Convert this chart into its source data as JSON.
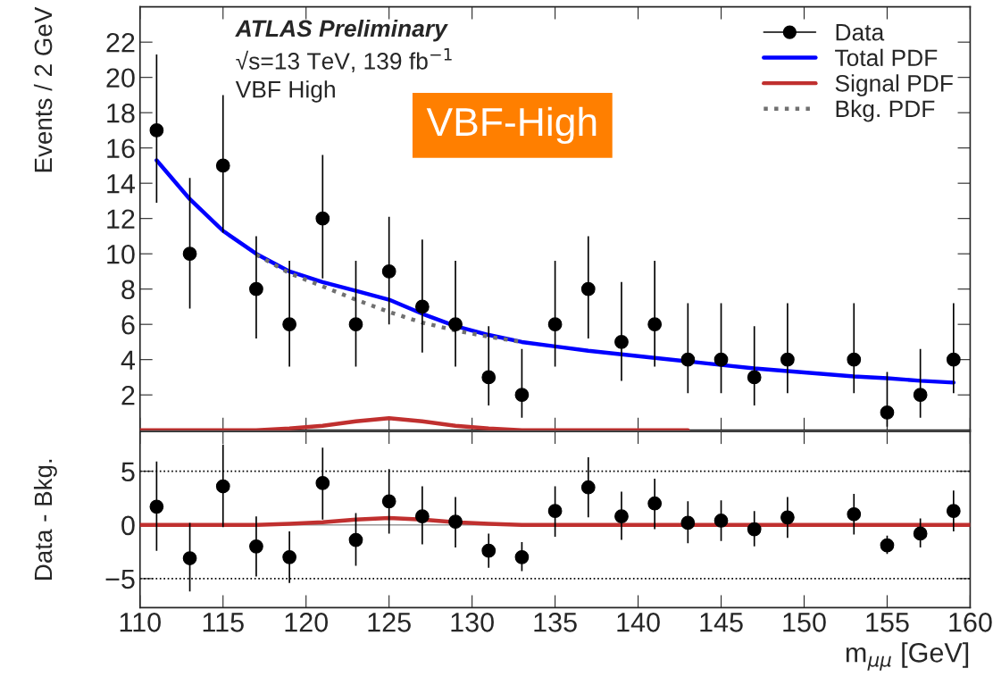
{
  "chart_data": [
    {
      "type": "scatter",
      "ylabel": "Events / 2 GeV",
      "xlim": [
        110,
        160
      ],
      "ylim": [
        0,
        24
      ],
      "yticks": [
        2,
        4,
        6,
        8,
        10,
        12,
        14,
        16,
        18,
        20,
        22
      ],
      "tick_labels": "y",
      "legend": "top right",
      "annotations": [
        "ATLAS Preliminary",
        "√s=13 TeV, 139 fb$^{−1}$",
        "VBF High",
        "VBF-High"
      ],
      "series": [
        {
          "name": "Data",
          "marker": "circle",
          "color": "#000000",
          "x": [
            111,
            113,
            115,
            117,
            119,
            121,
            123,
            125,
            127,
            129,
            131,
            133,
            135,
            137,
            139,
            141,
            143,
            145,
            147,
            149,
            153,
            155,
            157,
            159
          ],
          "values": [
            17,
            10,
            15,
            8,
            6,
            12,
            6,
            9,
            7,
            6,
            3,
            2,
            6,
            8,
            5,
            6,
            4,
            4,
            3,
            4,
            4,
            1,
            2,
            4
          ],
          "errors": [
            [
              12.9,
              21.3
            ],
            [
              6.9,
              14.3
            ],
            [
              11.2,
              19.0
            ],
            [
              5.2,
              11.0
            ],
            [
              3.6,
              9.6
            ],
            [
              8.6,
              15.6
            ],
            [
              3.6,
              9.6
            ],
            [
              6.0,
              12.1
            ],
            [
              4.4,
              10.8
            ],
            [
              3.6,
              9.6
            ],
            [
              1.4,
              5.9
            ],
            [
              0.7,
              4.6
            ],
            [
              3.6,
              9.6
            ],
            [
              5.2,
              11.0
            ],
            [
              2.8,
              8.4
            ],
            [
              3.6,
              9.6
            ],
            [
              2.1,
              7.2
            ],
            [
              2.1,
              7.2
            ],
            [
              1.4,
              5.9
            ],
            [
              2.1,
              7.2
            ],
            [
              2.1,
              7.2
            ],
            [
              0.2,
              3.3
            ],
            [
              0.7,
              4.6
            ],
            [
              2.1,
              7.2
            ]
          ]
        },
        {
          "name": "Total PDF",
          "type": "line",
          "color": "#0000ff",
          "line_style": "solid",
          "x": [
            111,
            113,
            115,
            117,
            119,
            121,
            123,
            125,
            127,
            129,
            131,
            133,
            135,
            137,
            139,
            141,
            143,
            145,
            147,
            149,
            151,
            153,
            155,
            157,
            159
          ],
          "values": [
            15.3,
            13.1,
            11.3,
            10.0,
            9.0,
            8.4,
            7.9,
            7.4,
            6.6,
            5.9,
            5.4,
            5.0,
            4.75,
            4.5,
            4.3,
            4.1,
            3.9,
            3.7,
            3.5,
            3.35,
            3.2,
            3.05,
            2.95,
            2.8,
            2.7
          ]
        },
        {
          "name": "Signal PDF",
          "type": "line",
          "color": "#c0302f",
          "line_style": "solid",
          "x": [
            110,
            113,
            115,
            117,
            119,
            121,
            123,
            125,
            127,
            129,
            131,
            133,
            135,
            137,
            139,
            141,
            143
          ],
          "values": [
            0,
            0,
            0,
            0,
            0.1,
            0.25,
            0.5,
            0.68,
            0.5,
            0.25,
            0.1,
            0,
            0,
            0,
            0,
            0,
            0
          ]
        },
        {
          "name": "Bkg. PDF",
          "type": "line",
          "color": "#707070",
          "line_style": "dotted",
          "x": [
            117,
            119,
            121,
            123,
            125,
            127,
            129,
            131,
            133
          ],
          "values": [
            9.95,
            8.9,
            8.15,
            7.4,
            6.7,
            6.1,
            5.65,
            5.3,
            5.0
          ]
        }
      ]
    },
    {
      "type": "scatter",
      "ylabel": "Data - Bkg.",
      "xlabel": "m$_{μμ}$ [GeV]",
      "xlim": [
        110,
        160
      ],
      "xticks": [
        110,
        115,
        120,
        125,
        130,
        135,
        140,
        145,
        150,
        155,
        160
      ],
      "ylim": [
        -7.7,
        8.7
      ],
      "yticks": [
        {
          "value": -5,
          "label": "−5"
        },
        0,
        5
      ],
      "ref_lines": [
        {
          "axis": "y",
          "value": 5,
          "color": "#000000",
          "line_style": "dotted"
        },
        {
          "axis": "y",
          "value": -5,
          "color": "#000000",
          "line_style": "dotted"
        },
        {
          "axis": "y",
          "value": 0,
          "color": "#999999",
          "line_style": "solid"
        }
      ],
      "series": [
        {
          "marker": "circle",
          "color": "#000000",
          "x": [
            111,
            113,
            115,
            117,
            119,
            121,
            123,
            125,
            127,
            129,
            131,
            133,
            135,
            137,
            139,
            141,
            143,
            145,
            147,
            149,
            153,
            155,
            157,
            159
          ],
          "values": [
            1.7,
            -3.1,
            3.6,
            -2.0,
            -3.0,
            3.9,
            -1.4,
            2.2,
            0.8,
            0.3,
            -2.4,
            -3.0,
            1.3,
            3.5,
            0.8,
            2.0,
            0.2,
            0.4,
            -0.4,
            0.7,
            1.0,
            -1.9,
            -0.8,
            1.3
          ],
          "errors": [
            [
              -2.4,
              5.9
            ],
            [
              -6.2,
              0.2
            ],
            [
              -0.2,
              7.5
            ],
            [
              -4.8,
              0.8
            ],
            [
              -5.4,
              -0.6
            ],
            [
              0.5,
              7.2
            ],
            [
              -3.8,
              1.1
            ],
            [
              -0.8,
              5.2
            ],
            [
              -1.8,
              3.6
            ],
            [
              -2.1,
              2.6
            ],
            [
              -4.0,
              -0.8
            ],
            [
              -4.3,
              -1.6
            ],
            [
              -1.1,
              3.6
            ],
            [
              0.7,
              6.3
            ],
            [
              -1.4,
              3.1
            ],
            [
              -0.4,
              4.3
            ],
            [
              -1.7,
              2.2
            ],
            [
              -1.5,
              2.3
            ],
            [
              -2.0,
              1.3
            ],
            [
              -1.2,
              2.6
            ],
            [
              -0.9,
              2.9
            ],
            [
              -2.7,
              -1.0
            ],
            [
              -2.1,
              0.6
            ],
            [
              -0.6,
              3.2
            ]
          ]
        },
        {
          "type": "line",
          "color": "#c0302f",
          "line_style": "solid",
          "x": [
            110,
            113,
            115,
            117,
            119,
            121,
            123,
            125,
            127,
            129,
            131,
            133,
            135,
            140,
            145,
            150,
            155,
            160
          ],
          "values": [
            0,
            0,
            0,
            0,
            0.1,
            0.25,
            0.5,
            0.65,
            0.5,
            0.25,
            0.1,
            0,
            0,
            0,
            0,
            0,
            0,
            0
          ]
        }
      ]
    }
  ]
}
